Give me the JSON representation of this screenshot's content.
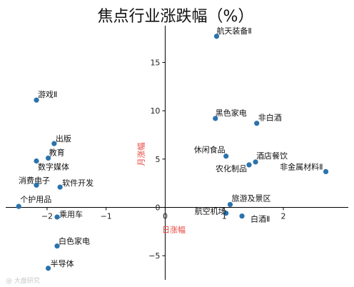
{
  "chart_data": {
    "type": "scatter",
    "title": "焦点行业涨跌幅（%）",
    "xlabel": "日涨幅",
    "ylabel": "月涨幅",
    "xlim": [
      -2.7,
      3.1
    ],
    "ylim": [
      -7.5,
      18.8
    ],
    "x_ticks": [
      -2,
      -1,
      0,
      1,
      2
    ],
    "y_ticks": [
      -5,
      0,
      5,
      10,
      15
    ],
    "x_tick_labels": [
      "−2",
      "−1",
      "0",
      "1",
      "2"
    ],
    "y_tick_labels": [
      "−5",
      "0",
      "5",
      "10",
      "15"
    ],
    "grid": false,
    "point_color": "#2a73ad",
    "axis_label_color": "#e8453c",
    "points": [
      {
        "label": "航天装备Ⅱ",
        "x": 0.87,
        "y": 17.7
      },
      {
        "label": "游戏Ⅱ",
        "x": -2.18,
        "y": 11.1
      },
      {
        "label": "黑色家电",
        "x": 0.85,
        "y": 9.2
      },
      {
        "label": "非白酒",
        "x": 1.55,
        "y": 8.7
      },
      {
        "label": "出版",
        "x": -1.88,
        "y": 6.6
      },
      {
        "label": "休闲食品",
        "x": 1.03,
        "y": 5.3
      },
      {
        "label": "教育",
        "x": -1.98,
        "y": 5.1
      },
      {
        "label": "数字媒体",
        "x": -2.18,
        "y": 4.8
      },
      {
        "label": "酒店餐饮",
        "x": 1.53,
        "y": 4.7
      },
      {
        "label": "农化制品",
        "x": 1.42,
        "y": 4.4
      },
      {
        "label": "非金属材料Ⅱ",
        "x": 2.72,
        "y": 3.7
      },
      {
        "label": "消费电子",
        "x": -2.18,
        "y": 2.3
      },
      {
        "label": "软件开发",
        "x": -1.78,
        "y": 2.1
      },
      {
        "label": "个护用品",
        "x": -2.48,
        "y": 0.1
      },
      {
        "label": "旅游及景区",
        "x": 1.1,
        "y": 0.3
      },
      {
        "label": "航空机场",
        "x": 1.03,
        "y": -0.6
      },
      {
        "label": "白酒Ⅱ",
        "x": 1.3,
        "y": -0.9
      },
      {
        "label": "乘用车",
        "x": -1.83,
        "y": -1.0
      },
      {
        "label": "白色家电",
        "x": -1.83,
        "y": -4.0
      },
      {
        "label": "半导体",
        "x": -1.98,
        "y": -6.3
      }
    ]
  },
  "watermark": "@ 大盘研究"
}
